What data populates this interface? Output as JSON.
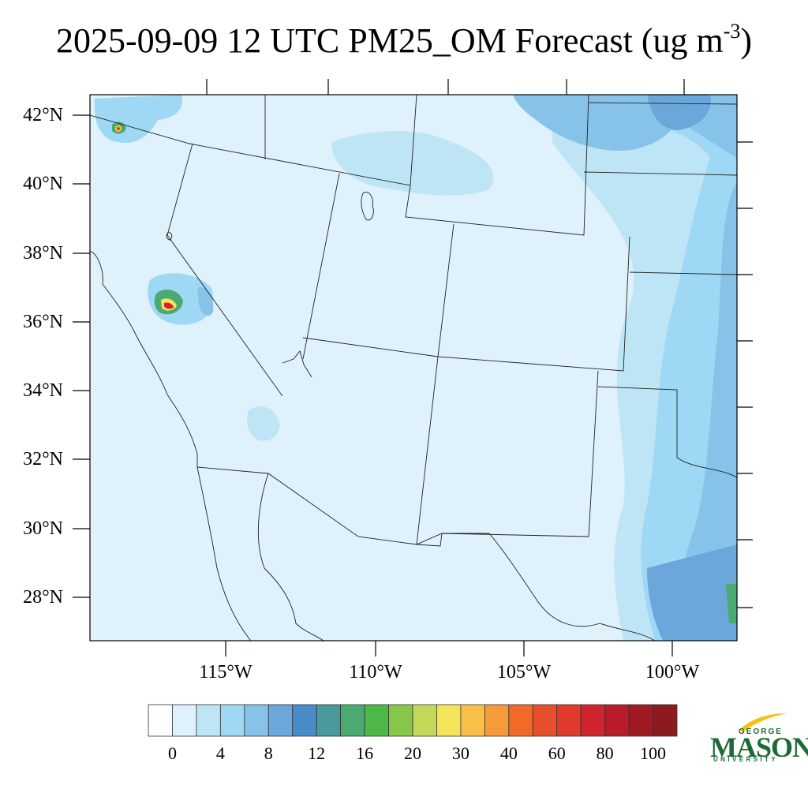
{
  "title": {
    "main": "2025-09-09 12 UTC PM25_OM Forecast (ug m",
    "superscript": "-3",
    "closing": ")"
  },
  "map": {
    "latitude_labels": [
      "42°N",
      "40°N",
      "38°N",
      "36°N",
      "34°N",
      "32°N",
      "30°N",
      "28°N"
    ],
    "longitude_labels": [
      "115°W",
      "110°W",
      "105°W",
      "100°W"
    ],
    "background_color": "#dff1fa"
  },
  "colorbar": {
    "labels": [
      "0",
      "4",
      "8",
      "12",
      "16",
      "20",
      "30",
      "40",
      "60",
      "80",
      "100"
    ],
    "colors": [
      "#ffffff",
      "#dff1fa",
      "#bde5f6",
      "#9ed8f4",
      "#87c3e8",
      "#6ba7db",
      "#4a8cca",
      "#4a9a9b",
      "#4aaa72",
      "#4db848",
      "#88c64a",
      "#c4d85a",
      "#f5e35a",
      "#f8c04a",
      "#f79a3a",
      "#f26a2a",
      "#e8502c",
      "#e03a2c",
      "#d02430",
      "#b81c2a",
      "#a01a22",
      "#8c1a1e"
    ]
  },
  "logo": {
    "george": "GEORGE",
    "mason": "MASON",
    "university": "UNIVERSITY",
    "color": "#1b6b35",
    "accent": "#f2c316"
  }
}
